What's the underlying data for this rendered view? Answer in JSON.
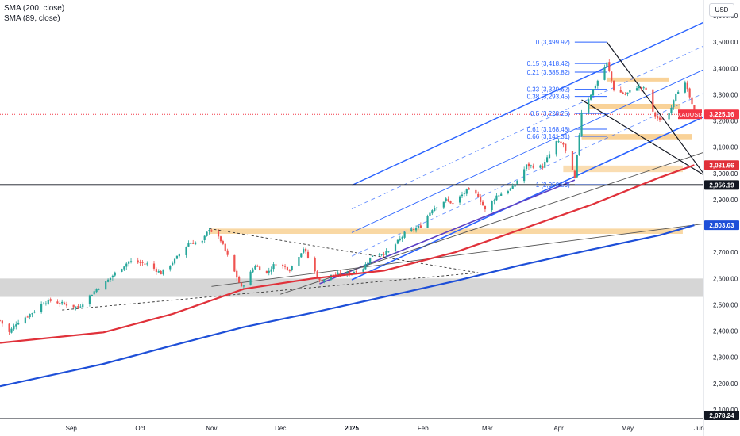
{
  "legend": [
    {
      "label": "SMA (200, close)"
    },
    {
      "label": "SMA (89, close)"
    }
  ],
  "currency": "USD",
  "colors": {
    "up": "#26a69a",
    "down": "#ef5350",
    "sma200": "#1e4fd8",
    "sma89": "#e0313a",
    "channel": "#2962ff",
    "fib": "#2962ff",
    "zone": "#f7c77e",
    "gray_zone": "#c8c8c8",
    "current": "#f23645"
  },
  "chart_data": {
    "type": "candlestick",
    "symbol": "XAUUSD",
    "x_range": [
      "2024-08-01",
      "2025-06-03"
    ],
    "y_range": [
      2062,
      3650
    ],
    "y_ticks": [
      "2,100.00",
      "2,200.00",
      "2,300.00",
      "2,400.00",
      "2,500.00",
      "2,600.00",
      "2,700.00",
      "2,800.00",
      "2,900.00",
      "3,000.00",
      "3,100.00",
      "3,200.00",
      "3,300.00",
      "3,400.00",
      "3,500.00",
      "3,600.00"
    ],
    "x_ticks": [
      {
        "date": "2024-09-01",
        "label": "Sep"
      },
      {
        "date": "2024-10-01",
        "label": "Oct"
      },
      {
        "date": "2024-11-01",
        "label": "Nov"
      },
      {
        "date": "2024-12-01",
        "label": "Dec"
      },
      {
        "date": "2025-01-01",
        "label": "2025"
      },
      {
        "date": "2025-02-01",
        "label": "Feb"
      },
      {
        "date": "2025-03-01",
        "label": "Mar"
      },
      {
        "date": "2025-04-01",
        "label": "Apr"
      },
      {
        "date": "2025-05-01",
        "label": "May"
      },
      {
        "date": "2025-06-01",
        "label": "Jun"
      }
    ],
    "price_path": [
      [
        "2024-08-01",
        2440
      ],
      [
        "2024-08-05",
        2395
      ],
      [
        "2024-08-08",
        2430
      ],
      [
        "2024-08-15",
        2470
      ],
      [
        "2024-08-20",
        2510
      ],
      [
        "2024-08-23",
        2515
      ],
      [
        "2024-08-28",
        2505
      ],
      [
        "2024-09-04",
        2490
      ],
      [
        "2024-09-12",
        2560
      ],
      [
        "2024-09-16",
        2585
      ],
      [
        "2024-09-20",
        2620
      ],
      [
        "2024-09-26",
        2665
      ],
      [
        "2024-10-01",
        2660
      ],
      [
        "2024-10-04",
        2655
      ],
      [
        "2024-10-10",
        2620
      ],
      [
        "2024-10-16",
        2670
      ],
      [
        "2024-10-22",
        2735
      ],
      [
        "2024-10-28",
        2740
      ],
      [
        "2024-10-31",
        2790
      ],
      [
        "2024-11-05",
        2745
      ],
      [
        "2024-11-08",
        2685
      ],
      [
        "2024-11-14",
        2565
      ],
      [
        "2024-11-20",
        2650
      ],
      [
        "2024-11-25",
        2620
      ],
      [
        "2024-11-29",
        2660
      ],
      [
        "2024-12-05",
        2635
      ],
      [
        "2024-12-11",
        2715
      ],
      [
        "2024-12-18",
        2590
      ],
      [
        "2024-12-24",
        2615
      ],
      [
        "2024-12-31",
        2620
      ],
      [
        "2025-01-06",
        2640
      ],
      [
        "2025-01-10",
        2690
      ],
      [
        "2025-01-17",
        2700
      ],
      [
        "2025-01-24",
        2770
      ],
      [
        "2025-01-31",
        2800
      ],
      [
        "2025-02-05",
        2865
      ],
      [
        "2025-02-11",
        2900
      ],
      [
        "2025-02-14",
        2885
      ],
      [
        "2025-02-20",
        2935
      ],
      [
        "2025-02-25",
        2915
      ],
      [
        "2025-02-28",
        2860
      ],
      [
        "2025-03-05",
        2915
      ],
      [
        "2025-03-12",
        2945
      ],
      [
        "2025-03-18",
        3030
      ],
      [
        "2025-03-25",
        3025
      ],
      [
        "2025-03-31",
        3120
      ],
      [
        "2025-04-03",
        3110
      ],
      [
        "2025-04-08",
        2980
      ],
      [
        "2025-04-11",
        3235
      ],
      [
        "2025-04-16",
        3320
      ],
      [
        "2025-04-22",
        3420
      ],
      [
        "2025-04-25",
        3320
      ],
      [
        "2025-04-30",
        3300
      ],
      [
        "2025-05-05",
        3330
      ],
      [
        "2025-05-09",
        3320
      ],
      [
        "2025-05-12",
        3230
      ],
      [
        "2025-05-15",
        3200
      ],
      [
        "2025-05-19",
        3230
      ],
      [
        "2025-05-22",
        3310
      ],
      [
        "2025-05-26",
        3340
      ],
      [
        "2025-05-28",
        3290
      ],
      [
        "2025-05-30",
        3225
      ]
    ],
    "sma89": [
      [
        "2024-08-01",
        2355
      ],
      [
        "2024-09-15",
        2395
      ],
      [
        "2024-10-15",
        2465
      ],
      [
        "2024-11-15",
        2560
      ],
      [
        "2024-12-15",
        2600
      ],
      [
        "2025-01-15",
        2630
      ],
      [
        "2025-02-15",
        2700
      ],
      [
        "2025-03-15",
        2785
      ],
      [
        "2025-04-15",
        2880
      ],
      [
        "2025-05-15",
        2985
      ],
      [
        "2025-05-30",
        3031.66
      ]
    ],
    "sma200": [
      [
        "2024-08-01",
        2190
      ],
      [
        "2024-09-15",
        2275
      ],
      [
        "2024-10-15",
        2345
      ],
      [
        "2024-11-15",
        2415
      ],
      [
        "2024-12-15",
        2470
      ],
      [
        "2025-01-15",
        2530
      ],
      [
        "2025-02-15",
        2590
      ],
      [
        "2025-03-15",
        2650
      ],
      [
        "2025-04-15",
        2710
      ],
      [
        "2025-05-15",
        2765
      ],
      [
        "2025-05-30",
        2803.03
      ]
    ],
    "fibonacci": [
      {
        "label": "0 (3,499.92)",
        "value": 3499.92
      },
      {
        "label": "0.15 (3,418.42)",
        "value": 3418.42
      },
      {
        "label": "0.21 (3,385.82)",
        "value": 3385.82
      },
      {
        "label": "0.33 (3,320.62)",
        "value": 3320.62
      },
      {
        "label": "0.38 (3,293.45)",
        "value": 3293.45
      },
      {
        "label": "0.5 (3,228.25)",
        "value": 3228.25
      },
      {
        "label": "0.61 (3,168.48)",
        "value": 3168.48
      },
      {
        "label": "0.66 (3,141.31)",
        "value": 3141.31
      },
      {
        "label": "1 (2,956.59)",
        "value": 2956.59
      }
    ],
    "price_labels": [
      {
        "text": "3,225.16",
        "value": 3225.16,
        "kind": "current"
      },
      {
        "text": "XAUUSD",
        "value": 3225.16,
        "kind": "symbol"
      },
      {
        "text": "3,031.66",
        "value": 3031.66,
        "kind": "sma89"
      },
      {
        "text": "2,956.19",
        "value": 2956.19,
        "kind": "level"
      },
      {
        "text": "2,803.03",
        "value": 2803.03,
        "kind": "sma200"
      },
      {
        "text": "2,078.24",
        "value": 2078.24,
        "kind": "axis-low"
      }
    ],
    "horizontal_level": 2956.19
  }
}
